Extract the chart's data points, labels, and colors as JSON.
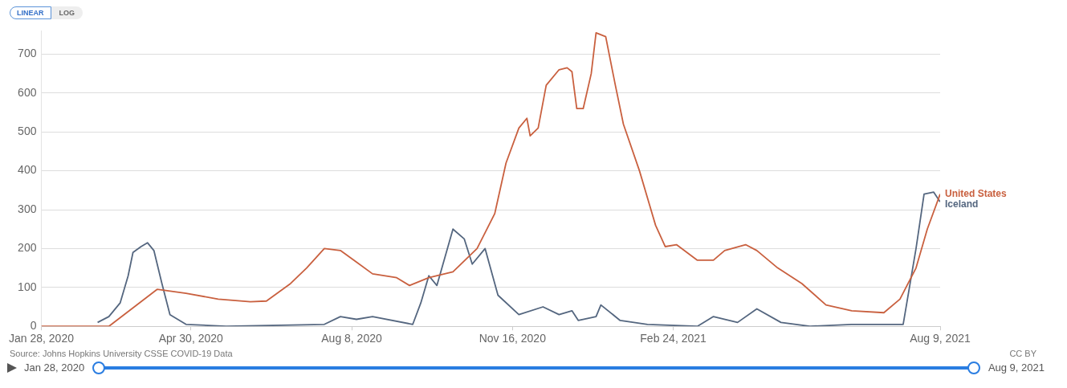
{
  "chart_data": {
    "type": "line",
    "xlim": [
      "2020-01-28",
      "2021-08-09"
    ],
    "xticks": [
      {
        "value": "2020-01-28",
        "label": "Jan 28, 2020"
      },
      {
        "value": "2020-04-30",
        "label": "Apr 30, 2020"
      },
      {
        "value": "2020-08-08",
        "label": "Aug 8, 2020"
      },
      {
        "value": "2020-11-16",
        "label": "Nov 16, 2020"
      },
      {
        "value": "2021-02-24",
        "label": "Feb 24, 2021"
      },
      {
        "value": "2021-08-09",
        "label": "Aug 9, 2021"
      }
    ],
    "ylim": [
      0,
      760
    ],
    "yticks": [
      0,
      100,
      200,
      300,
      400,
      500,
      600,
      700
    ],
    "grid": "y",
    "legend": false,
    "marker": "none",
    "line_style": "solid",
    "annotations": [
      "Source: Johns Hopkins University CSSE COVID-19 Data",
      "CC BY",
      "LINEAR",
      "LOG",
      "Jan 28, 2020",
      "Aug 9, 2021"
    ],
    "series": [
      {
        "name": "United States",
        "color": "#c9603f",
        "x": [
          "2020-01-28",
          "2020-03-10",
          "2020-04-09",
          "2020-04-27",
          "2020-05-17",
          "2020-06-06",
          "2020-06-16",
          "2020-07-01",
          "2020-07-11",
          "2020-07-22",
          "2020-08-01",
          "2020-08-11",
          "2020-08-21",
          "2020-09-05",
          "2020-09-13",
          "2020-09-25",
          "2020-10-10",
          "2020-10-25",
          "2020-11-05",
          "2020-11-12",
          "2020-11-20",
          "2020-11-25",
          "2020-11-27",
          "2020-12-02",
          "2020-12-07",
          "2020-12-15",
          "2020-12-20",
          "2020-12-23",
          "2020-12-26",
          "2020-12-30",
          "2021-01-04",
          "2021-01-07",
          "2021-01-13",
          "2021-01-19",
          "2021-01-24",
          "2021-02-03",
          "2021-02-13",
          "2021-02-19",
          "2021-02-26",
          "2021-03-11",
          "2021-03-21",
          "2021-03-28",
          "2021-04-10",
          "2021-04-17",
          "2021-04-30",
          "2021-05-15",
          "2021-05-30",
          "2021-06-15",
          "2021-07-05",
          "2021-07-15",
          "2021-07-25",
          "2021-08-01",
          "2021-08-09"
        ],
        "values": [
          0,
          0,
          95,
          85,
          70,
          63,
          65,
          110,
          150,
          200,
          195,
          165,
          135,
          125,
          105,
          125,
          140,
          200,
          290,
          420,
          510,
          535,
          490,
          510,
          620,
          660,
          665,
          655,
          560,
          560,
          650,
          755,
          745,
          620,
          520,
          400,
          260,
          205,
          210,
          170,
          170,
          195,
          210,
          195,
          150,
          110,
          55,
          40,
          35,
          70,
          150,
          250,
          340
        ]
      },
      {
        "name": "Iceland",
        "color": "#54667f",
        "x": [
          "2020-03-03",
          "2020-03-10",
          "2020-03-17",
          "2020-03-22",
          "2020-03-25",
          "2020-03-30",
          "2020-04-03",
          "2020-04-07",
          "2020-04-12",
          "2020-04-17",
          "2020-04-27",
          "2020-05-22",
          "2020-07-22",
          "2020-08-01",
          "2020-08-11",
          "2020-08-21",
          "2020-09-15",
          "2020-09-20",
          "2020-09-25",
          "2020-09-30",
          "2020-10-10",
          "2020-10-17",
          "2020-10-22",
          "2020-10-30",
          "2020-11-07",
          "2020-11-20",
          "2020-12-05",
          "2020-12-15",
          "2020-12-23",
          "2020-12-27",
          "2021-01-07",
          "2021-01-10",
          "2021-01-22",
          "2021-02-08",
          "2021-03-11",
          "2021-03-21",
          "2021-04-05",
          "2021-04-17",
          "2021-05-02",
          "2021-05-20",
          "2021-06-15",
          "2021-07-17",
          "2021-07-25",
          "2021-07-30",
          "2021-08-05",
          "2021-08-09"
        ],
        "values": [
          10,
          25,
          60,
          130,
          190,
          205,
          215,
          195,
          110,
          30,
          5,
          0,
          5,
          25,
          18,
          25,
          5,
          60,
          130,
          105,
          250,
          225,
          160,
          200,
          80,
          30,
          50,
          30,
          40,
          15,
          25,
          55,
          15,
          5,
          0,
          25,
          10,
          45,
          10,
          0,
          5,
          5,
          200,
          340,
          345,
          320
        ]
      }
    ]
  }
}
